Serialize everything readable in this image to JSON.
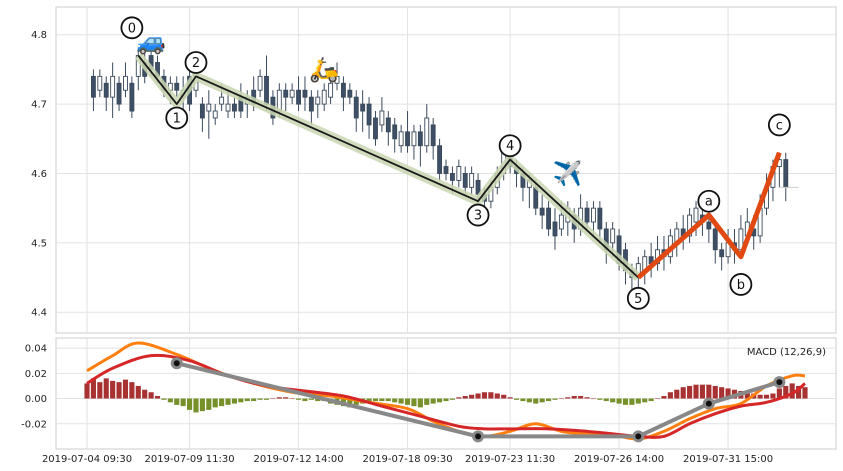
{
  "chart_data": [
    {
      "type": "candlestick",
      "panel": "price",
      "yticks": [
        4.4,
        4.5,
        4.6,
        4.7,
        4.8
      ],
      "ylim": [
        4.37,
        4.84
      ],
      "candles": [
        [
          1,
          4.74,
          4.71,
          4.75,
          4.69
        ],
        [
          2,
          4.72,
          4.74,
          4.75,
          4.71
        ],
        [
          3,
          4.73,
          4.71,
          4.74,
          4.69
        ],
        [
          4,
          4.71,
          4.74,
          4.76,
          4.68
        ],
        [
          5,
          4.73,
          4.7,
          4.74,
          4.69
        ],
        [
          6,
          4.72,
          4.74,
          4.76,
          4.71
        ],
        [
          7,
          4.73,
          4.69,
          4.74,
          4.68
        ],
        [
          8,
          4.74,
          4.77,
          4.78,
          4.72
        ],
        [
          9,
          4.76,
          4.74,
          4.78,
          4.73
        ],
        [
          10,
          4.77,
          4.75,
          4.78,
          4.74
        ],
        [
          11,
          4.76,
          4.74,
          4.77,
          4.73
        ],
        [
          12,
          4.74,
          4.72,
          4.75,
          4.71
        ],
        [
          13,
          4.72,
          4.73,
          4.74,
          4.7
        ],
        [
          14,
          4.73,
          4.72,
          4.74,
          4.71
        ],
        [
          15,
          4.71,
          4.72,
          4.74,
          4.69
        ],
        [
          16,
          4.74,
          4.7,
          4.76,
          4.69
        ],
        [
          17,
          4.72,
          4.75,
          4.77,
          4.71
        ],
        [
          18,
          4.7,
          4.68,
          4.71,
          4.66
        ],
        [
          19,
          4.69,
          4.7,
          4.72,
          4.65
        ],
        [
          20,
          4.68,
          4.69,
          4.7,
          4.67
        ],
        [
          21,
          4.7,
          4.71,
          4.73,
          4.69
        ],
        [
          22,
          4.69,
          4.7,
          4.72,
          4.68
        ],
        [
          23,
          4.7,
          4.69,
          4.71,
          4.68
        ],
        [
          24,
          4.71,
          4.69,
          4.73,
          4.68
        ],
        [
          25,
          4.7,
          4.71,
          4.72,
          4.68
        ],
        [
          26,
          4.72,
          4.7,
          4.74,
          4.69
        ],
        [
          27,
          4.72,
          4.74,
          4.75,
          4.71
        ],
        [
          28,
          4.74,
          4.7,
          4.77,
          4.69
        ],
        [
          29,
          4.71,
          4.68,
          4.72,
          4.67
        ],
        [
          30,
          4.69,
          4.72,
          4.73,
          4.68
        ],
        [
          31,
          4.72,
          4.71,
          4.73,
          4.69
        ],
        [
          32,
          4.71,
          4.72,
          4.73,
          4.7
        ],
        [
          33,
          4.72,
          4.7,
          4.74,
          4.69
        ],
        [
          34,
          4.72,
          4.71,
          4.74,
          4.69
        ],
        [
          35,
          4.71,
          4.69,
          4.72,
          4.67
        ],
        [
          36,
          4.7,
          4.71,
          4.72,
          4.68
        ],
        [
          37,
          4.7,
          4.72,
          4.73,
          4.69
        ],
        [
          38,
          4.71,
          4.73,
          4.74,
          4.7
        ],
        [
          39,
          4.73,
          4.74,
          4.76,
          4.72
        ],
        [
          40,
          4.73,
          4.71,
          4.74,
          4.69
        ],
        [
          41,
          4.72,
          4.71,
          4.73,
          4.7
        ],
        [
          42,
          4.71,
          4.68,
          4.72,
          4.66
        ],
        [
          43,
          4.7,
          4.69,
          4.72,
          4.66
        ],
        [
          44,
          4.7,
          4.67,
          4.71,
          4.65
        ],
        [
          45,
          4.68,
          4.65,
          4.69,
          4.64
        ],
        [
          46,
          4.67,
          4.69,
          4.71,
          4.66
        ],
        [
          47,
          4.68,
          4.66,
          4.69,
          4.64
        ],
        [
          48,
          4.67,
          4.65,
          4.68,
          4.63
        ],
        [
          49,
          4.64,
          4.66,
          4.67,
          4.63
        ],
        [
          50,
          4.66,
          4.64,
          4.69,
          4.63
        ],
        [
          51,
          4.64,
          4.66,
          4.67,
          4.62
        ],
        [
          52,
          4.66,
          4.64,
          4.67,
          4.61
        ],
        [
          53,
          4.64,
          4.68,
          4.7,
          4.63
        ],
        [
          54,
          4.67,
          4.64,
          4.68,
          4.62
        ],
        [
          55,
          4.64,
          4.6,
          4.65,
          4.59
        ],
        [
          56,
          4.61,
          4.6,
          4.62,
          4.59
        ],
        [
          57,
          4.6,
          4.59,
          4.61,
          4.57
        ],
        [
          58,
          4.59,
          4.61,
          4.62,
          4.58
        ],
        [
          59,
          4.6,
          4.58,
          4.61,
          4.57
        ],
        [
          60,
          4.58,
          4.6,
          4.61,
          4.57
        ],
        [
          61,
          4.59,
          4.57,
          4.6,
          4.55
        ],
        [
          62,
          4.57,
          4.56,
          4.58,
          4.54
        ],
        [
          63,
          4.56,
          4.58,
          4.59,
          4.55
        ],
        [
          64,
          4.58,
          4.6,
          4.61,
          4.57
        ],
        [
          65,
          4.6,
          4.63,
          4.64,
          4.59
        ],
        [
          66,
          4.63,
          4.61,
          4.65,
          4.6
        ],
        [
          67,
          4.61,
          4.6,
          4.62,
          4.58
        ],
        [
          68,
          4.6,
          4.58,
          4.61,
          4.56
        ],
        [
          69,
          4.58,
          4.59,
          4.6,
          4.55
        ],
        [
          70,
          4.58,
          4.55,
          4.59,
          4.54
        ],
        [
          71,
          4.55,
          4.54,
          4.57,
          4.52
        ],
        [
          72,
          4.55,
          4.52,
          4.56,
          4.51
        ],
        [
          73,
          4.53,
          4.51,
          4.55,
          4.49
        ],
        [
          74,
          4.52,
          4.54,
          4.56,
          4.51
        ],
        [
          75,
          4.53,
          4.55,
          4.56,
          4.51
        ],
        [
          76,
          4.54,
          4.52,
          4.55,
          4.5
        ],
        [
          77,
          4.52,
          4.55,
          4.57,
          4.51
        ],
        [
          78,
          4.55,
          4.53,
          4.56,
          4.52
        ],
        [
          79,
          4.53,
          4.55,
          4.56,
          4.51
        ],
        [
          80,
          4.55,
          4.52,
          4.56,
          4.5
        ],
        [
          81,
          4.52,
          4.49,
          4.53,
          4.47
        ],
        [
          82,
          4.5,
          4.52,
          4.53,
          4.48
        ],
        [
          83,
          4.51,
          4.47,
          4.52,
          4.46
        ],
        [
          84,
          4.49,
          4.46,
          4.5,
          4.44
        ],
        [
          85,
          4.46,
          4.45,
          4.47,
          4.43
        ],
        [
          86,
          4.45,
          4.47,
          4.48,
          4.43
        ],
        [
          87,
          4.46,
          4.48,
          4.49,
          4.44
        ],
        [
          88,
          4.48,
          4.47,
          4.5,
          4.45
        ],
        [
          89,
          4.47,
          4.49,
          4.51,
          4.46
        ],
        [
          90,
          4.49,
          4.48,
          4.51,
          4.46
        ],
        [
          91,
          4.48,
          4.51,
          4.52,
          4.47
        ],
        [
          92,
          4.5,
          4.52,
          4.53,
          4.48
        ],
        [
          93,
          4.52,
          4.51,
          4.54,
          4.49
        ],
        [
          94,
          4.51,
          4.54,
          4.55,
          4.5
        ],
        [
          95,
          4.53,
          4.55,
          4.56,
          4.51
        ],
        [
          96,
          4.54,
          4.53,
          4.55,
          4.51
        ],
        [
          97,
          4.53,
          4.52,
          4.54,
          4.5
        ],
        [
          98,
          4.52,
          4.49,
          4.53,
          4.47
        ],
        [
          99,
          4.49,
          4.48,
          4.5,
          4.46
        ],
        [
          100,
          4.48,
          4.5,
          4.52,
          4.47
        ],
        [
          101,
          4.5,
          4.49,
          4.52,
          4.47
        ],
        [
          102,
          4.49,
          4.52,
          4.54,
          4.48
        ],
        [
          103,
          4.51,
          4.53,
          4.55,
          4.5
        ],
        [
          104,
          4.52,
          4.51,
          4.54,
          4.49
        ],
        [
          105,
          4.51,
          4.55,
          4.57,
          4.5
        ],
        [
          106,
          4.55,
          4.58,
          4.6,
          4.54
        ],
        [
          107,
          4.58,
          4.61,
          4.62,
          4.56
        ],
        [
          108,
          4.61,
          4.62,
          4.63,
          4.58
        ],
        [
          109,
          4.62,
          4.58,
          4.63,
          4.56
        ]
      ],
      "wave_primary": [
        [
          8,
          4.77
        ],
        [
          14,
          4.7
        ],
        [
          17,
          4.74
        ],
        [
          61,
          4.56
        ],
        [
          66,
          4.62
        ],
        [
          86,
          4.45
        ]
      ],
      "wave_correction": [
        [
          86,
          4.45
        ],
        [
          97,
          4.54
        ],
        [
          102,
          4.48
        ],
        [
          108,
          4.63
        ]
      ],
      "wave_labels": [
        {
          "text": "0",
          "x": 7,
          "y": 4.81
        },
        {
          "text": "1",
          "x": 14,
          "y": 4.68
        },
        {
          "text": "2",
          "x": 17,
          "y": 4.76
        },
        {
          "text": "3",
          "x": 61,
          "y": 4.54
        },
        {
          "text": "4",
          "x": 66,
          "y": 4.64
        },
        {
          "text": "5",
          "x": 86,
          "y": 4.42
        },
        {
          "text": "a",
          "x": 97,
          "y": 4.56
        },
        {
          "text": "b",
          "x": 102,
          "y": 4.44
        },
        {
          "text": "c",
          "x": 108,
          "y": 4.67
        }
      ],
      "emoji_markers": [
        {
          "glyph": "🚙",
          "label": "car",
          "x": 10,
          "y": 4.79
        },
        {
          "glyph": "🛵",
          "label": "scooter",
          "x": 37,
          "y": 4.75
        },
        {
          "glyph": "✈️",
          "label": "airplane",
          "x": 75,
          "y": 4.6
        }
      ],
      "last_price": 4.58
    },
    {
      "type": "macd",
      "panel": "indicator",
      "legend": "MACD (12,26,9)",
      "yticks": [
        -0.02,
        0.0,
        0.02,
        0.04
      ],
      "ylim": [
        -0.04,
        0.048
      ],
      "xtick_labels": [
        {
          "label": "2019-07-04 09:30",
          "x": 0
        },
        {
          "label": "2019-07-09 11:30",
          "x": 16
        },
        {
          "label": "2019-07-12 14:00",
          "x": 33
        },
        {
          "label": "2019-07-18 09:30",
          "x": 50
        },
        {
          "label": "2019-07-23 11:30",
          "x": 66
        },
        {
          "label": "2019-07-26 14:00",
          "x": 83
        },
        {
          "label": "2019-07-31 15:00",
          "x": 100
        }
      ],
      "histogram": [
        0.012,
        0.016,
        0.013,
        0.016,
        0.014,
        0.013,
        0.015,
        0.013,
        0.01,
        0.007,
        0.005,
        0.002,
        -0.001,
        -0.003,
        -0.005,
        -0.006,
        -0.009,
        -0.011,
        -0.01,
        -0.009,
        -0.007,
        -0.006,
        -0.005,
        -0.004,
        -0.003,
        -0.002,
        -0.002,
        -0.001,
        -0.001,
        0.0,
        0.001,
        0.001,
        0.0,
        -0.001,
        -0.002,
        -0.001,
        -0.002,
        -0.002,
        -0.004,
        -0.005,
        -0.006,
        -0.007,
        -0.005,
        -0.004,
        -0.003,
        -0.002,
        -0.002,
        -0.002,
        -0.003,
        -0.004,
        -0.005,
        -0.006,
        -0.007,
        -0.005,
        -0.004,
        -0.003,
        -0.002,
        -0.001,
        0.001,
        0.002,
        0.003,
        0.004,
        0.005,
        0.005,
        0.004,
        0.003,
        0.001,
        -0.001,
        -0.002,
        -0.003,
        -0.004,
        -0.003,
        -0.002,
        -0.001,
        0.0,
        0.001,
        0.002,
        0.002,
        0.001,
        0.0,
        -0.001,
        -0.002,
        -0.003,
        -0.004,
        -0.005,
        -0.005,
        -0.004,
        -0.003,
        -0.002,
        0.0,
        0.002,
        0.005,
        0.007,
        0.009,
        0.01,
        0.011,
        0.011,
        0.011,
        0.01,
        0.009,
        0.008,
        0.007,
        0.006,
        0.005,
        0.004,
        0.003,
        0.003,
        0.004,
        0.008,
        0.01,
        0.012,
        0.01,
        0.009
      ],
      "macd_line": [
        [
          0,
          0.022
        ],
        [
          4,
          0.034
        ],
        [
          8,
          0.044
        ],
        [
          14,
          0.035
        ],
        [
          20,
          0.022
        ],
        [
          26,
          0.012
        ],
        [
          32,
          0.005
        ],
        [
          38,
          0.002
        ],
        [
          44,
          -0.003
        ],
        [
          50,
          -0.008
        ],
        [
          54,
          -0.018
        ],
        [
          58,
          -0.026
        ],
        [
          62,
          -0.03
        ],
        [
          66,
          -0.026
        ],
        [
          70,
          -0.02
        ],
        [
          74,
          -0.026
        ],
        [
          78,
          -0.028
        ],
        [
          82,
          -0.029
        ],
        [
          86,
          -0.032
        ],
        [
          90,
          -0.026
        ],
        [
          94,
          -0.016
        ],
        [
          98,
          -0.008
        ],
        [
          102,
          -0.004
        ],
        [
          106,
          0.01
        ],
        [
          110,
          0.018
        ],
        [
          112,
          0.018
        ]
      ],
      "signal_line": [
        [
          0,
          0.012
        ],
        [
          4,
          0.024
        ],
        [
          10,
          0.034
        ],
        [
          16,
          0.03
        ],
        [
          22,
          0.018
        ],
        [
          28,
          0.01
        ],
        [
          34,
          0.006
        ],
        [
          40,
          0.002
        ],
        [
          46,
          -0.006
        ],
        [
          52,
          -0.014
        ],
        [
          58,
          -0.022
        ],
        [
          62,
          -0.024
        ],
        [
          66,
          -0.024
        ],
        [
          72,
          -0.024
        ],
        [
          78,
          -0.026
        ],
        [
          82,
          -0.028
        ],
        [
          86,
          -0.03
        ],
        [
          90,
          -0.03
        ],
        [
          94,
          -0.02
        ],
        [
          98,
          -0.012
        ],
        [
          102,
          -0.006
        ],
        [
          106,
          -0.003
        ],
        [
          110,
          0.004
        ],
        [
          112,
          0.012
        ]
      ],
      "wave_line": [
        [
          14,
          0.028
        ],
        [
          61,
          -0.03
        ],
        [
          86,
          -0.03
        ],
        [
          97,
          -0.004
        ],
        [
          108,
          0.013
        ]
      ]
    }
  ]
}
